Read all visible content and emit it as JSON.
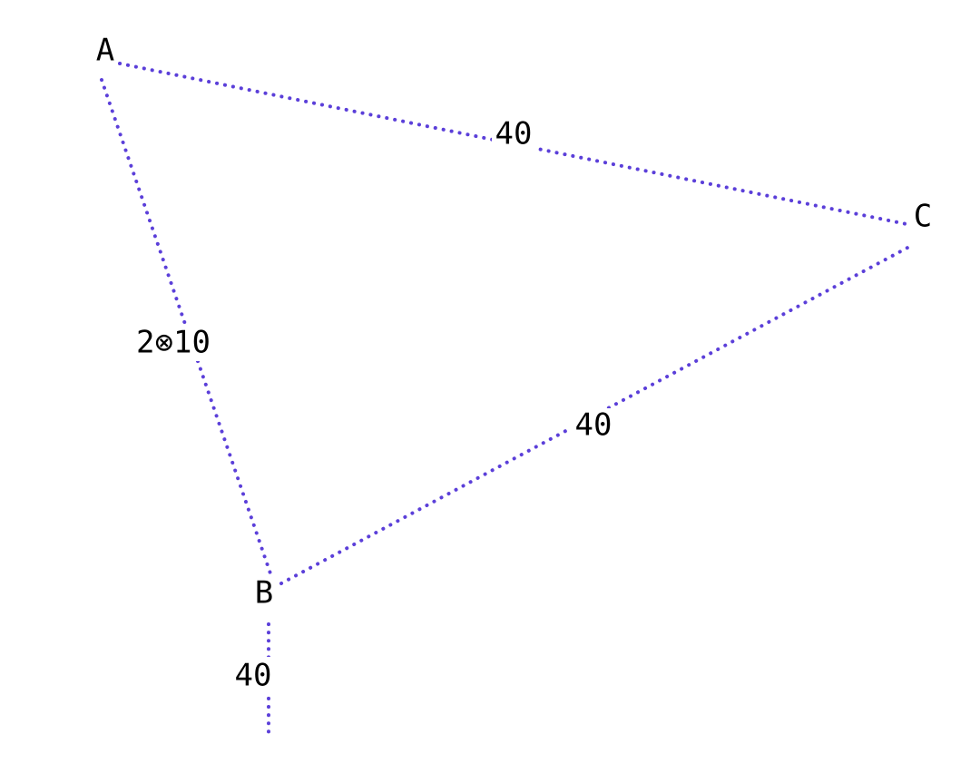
{
  "diagram": {
    "line_color": "#5b3fd9",
    "text_color": "#000000",
    "vertices": {
      "A": {
        "label": "A"
      },
      "B": {
        "label": "B"
      },
      "C": {
        "label": "C"
      }
    },
    "edges": {
      "ab": {
        "label": "2⊗10"
      },
      "ac": {
        "label": "40"
      },
      "bc": {
        "label": "40"
      },
      "b_out": {
        "label": "40"
      }
    }
  }
}
